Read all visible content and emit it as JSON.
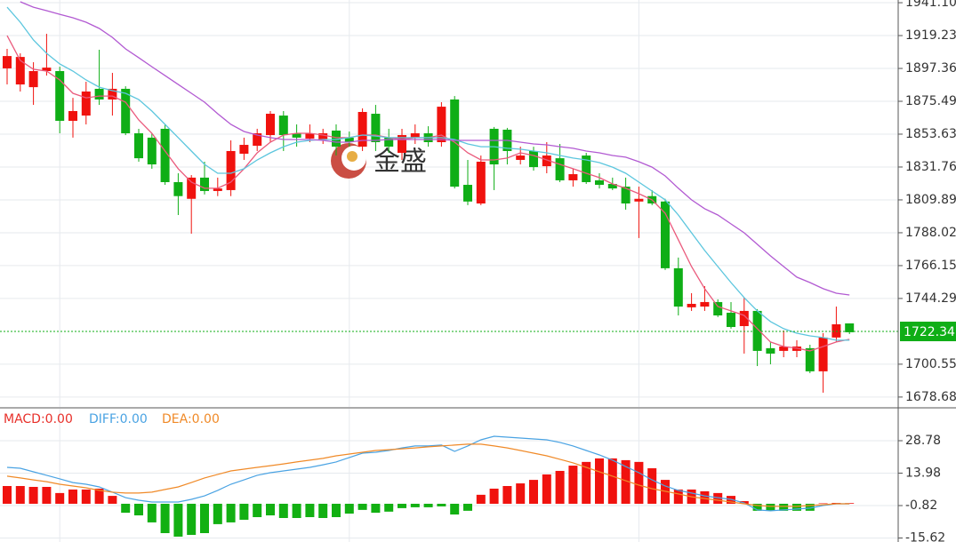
{
  "chart_data": [
    {
      "type": "candlestick",
      "open": [
        1897.4,
        1886.7,
        1884.9,
        1895.6,
        1895.6,
        1862.5,
        1866.0,
        1883.8,
        1876.7,
        1883.8,
        1854.2,
        1851.3,
        1857.2,
        1821.7,
        1810.6,
        1824.7,
        1815.8,
        1816.4,
        1840.6,
        1845.9,
        1853.0,
        1866.0,
        1854.2,
        1850.7,
        1850.1,
        1856.0,
        1851.3,
        1845.3,
        1867.2,
        1851.3,
        1841.2,
        1851.3,
        1854.2,
        1848.3,
        1876.7,
        1819.9,
        1807.5,
        1857.2,
        1856.6,
        1836.5,
        1842.4,
        1832.3,
        1837.6,
        1822.9,
        1839.4,
        1822.9,
        1820.5,
        1818.7,
        1808.8,
        1812.4,
        1808.8,
        1764.4,
        1738.4,
        1738.9,
        1741.9,
        1734.8,
        1725.9,
        1736.0,
        1711.2,
        1709.4,
        1709.4,
        1711.2,
        1695.8,
        1718.3,
        1727.7
      ],
      "high": [
        1910.4,
        1907.4,
        1901.5,
        1920.4,
        1898.5,
        1877.8,
        1888.5,
        1909.8,
        1894.4,
        1885.5,
        1857.2,
        1854.2,
        1860.1,
        1827.6,
        1826.4,
        1835.3,
        1824.7,
        1849.5,
        1851.3,
        1857.2,
        1869.0,
        1869.0,
        1860.1,
        1860.1,
        1857.2,
        1860.1,
        1855.4,
        1870.8,
        1873.1,
        1857.2,
        1857.2,
        1860.1,
        1858.9,
        1874.9,
        1879.0,
        1836.5,
        1839.4,
        1858.4,
        1857.8,
        1845.3,
        1845.3,
        1848.3,
        1847.1,
        1830.6,
        1841.2,
        1827.6,
        1824.7,
        1824.7,
        1818.7,
        1816.4,
        1810.6,
        1771.5,
        1747.8,
        1752.5,
        1743.7,
        1741.9,
        1744.9,
        1737.2,
        1715.3,
        1723.0,
        1716.5,
        1713.5,
        1721.2,
        1738.9,
        1727.7
      ],
      "low": [
        1886.7,
        1882.0,
        1873.1,
        1892.6,
        1854.2,
        1851.3,
        1860.1,
        1873.1,
        1866.0,
        1853.0,
        1835.3,
        1830.6,
        1819.9,
        1799.8,
        1787.4,
        1813.5,
        1812.4,
        1812.4,
        1836.5,
        1842.4,
        1848.3,
        1842.4,
        1845.3,
        1848.3,
        1847.1,
        1839.4,
        1845.3,
        1842.4,
        1842.4,
        1841.2,
        1836.5,
        1847.1,
        1845.3,
        1845.3,
        1817.5,
        1806.4,
        1806.4,
        1816.4,
        1833.5,
        1833.5,
        1829.4,
        1827.6,
        1821.7,
        1818.7,
        1820.5,
        1817.5,
        1816.4,
        1803.4,
        1784.5,
        1806.4,
        1763.2,
        1733.0,
        1736.0,
        1736.0,
        1731.9,
        1724.2,
        1707.6,
        1699.3,
        1700.5,
        1705.2,
        1705.2,
        1694.6,
        1681.6,
        1715.3,
        1720.6
      ],
      "close": [
        1905.6,
        1905.0,
        1895.6,
        1897.9,
        1862.5,
        1869.0,
        1882.0,
        1876.7,
        1883.8,
        1854.2,
        1837.6,
        1833.5,
        1821.7,
        1812.4,
        1824.7,
        1815.8,
        1817.5,
        1842.4,
        1846.5,
        1854.2,
        1867.2,
        1853.0,
        1851.3,
        1854.2,
        1854.2,
        1845.3,
        1848.3,
        1868.4,
        1848.3,
        1845.3,
        1853.0,
        1854.2,
        1848.3,
        1871.9,
        1818.7,
        1808.8,
        1835.3,
        1833.5,
        1842.4,
        1839.4,
        1831.7,
        1839.4,
        1822.9,
        1827.0,
        1821.7,
        1819.9,
        1817.5,
        1807.5,
        1810.6,
        1807.5,
        1764.4,
        1738.9,
        1740.7,
        1741.9,
        1733.0,
        1725.3,
        1736.0,
        1709.4,
        1707.6,
        1712.3,
        1712.3,
        1695.8,
        1718.3,
        1727.1,
        1721.8
      ],
      "up_color": "#f0120e",
      "down_color": "#0fae16",
      "lines": [
        {
          "color": "#ea5a7c",
          "values": [
            1919.2,
            1902.7,
            1896.8,
            1895.6,
            1889.7,
            1880.8,
            1877.8,
            1879.0,
            1879.0,
            1874.9,
            1863.1,
            1854.2,
            1842.4,
            1830.6,
            1821.7,
            1817.6,
            1817.6,
            1821.7,
            1830.6,
            1841.2,
            1848.3,
            1853.0,
            1854.2,
            1854.2,
            1853.0,
            1851.3,
            1851.3,
            1853.0,
            1853.0,
            1851.3,
            1850.1,
            1851.3,
            1851.3,
            1853.0,
            1848.3,
            1841.2,
            1836.5,
            1836.5,
            1837.7,
            1841.2,
            1839.4,
            1836.5,
            1833.5,
            1830.6,
            1827.6,
            1824.7,
            1820.5,
            1817.6,
            1814.0,
            1809.9,
            1801.0,
            1783.3,
            1765.5,
            1750.8,
            1738.9,
            1736.0,
            1733.0,
            1724.2,
            1715.3,
            1712.3,
            1711.2,
            1709.4,
            1712.3,
            1715.3,
            1717.1
          ]
        },
        {
          "color": "#5cc6de",
          "values": [
            1938.1,
            1928.1,
            1916.3,
            1907.4,
            1900.3,
            1895.6,
            1889.7,
            1884.9,
            1882.6,
            1880.8,
            1876.7,
            1869.0,
            1860.1,
            1851.3,
            1842.4,
            1833.5,
            1827.6,
            1827.6,
            1830.6,
            1836.5,
            1841.2,
            1845.3,
            1848.3,
            1849.5,
            1850.1,
            1850.1,
            1851.3,
            1853.0,
            1852.4,
            1851.3,
            1851.3,
            1851.3,
            1851.3,
            1851.3,
            1850.1,
            1847.1,
            1845.3,
            1845.3,
            1844.2,
            1843.6,
            1842.4,
            1841.2,
            1839.4,
            1837.7,
            1836.5,
            1834.7,
            1831.7,
            1827.6,
            1821.7,
            1815.8,
            1809.9,
            1799.8,
            1788.0,
            1776.2,
            1765.5,
            1754.9,
            1744.9,
            1736.0,
            1728.9,
            1724.2,
            1721.2,
            1719.4,
            1718.3,
            1716.5,
            1716.5
          ]
        },
        {
          "color": "#b25ad2",
          "values": [
            null,
            1941.7,
            1938.1,
            1935.8,
            1933.4,
            1931.1,
            1928.1,
            1924.0,
            1918.0,
            1910.4,
            1904.5,
            1898.5,
            1892.6,
            1886.7,
            1880.8,
            1874.9,
            1867.2,
            1860.1,
            1855.4,
            1853.0,
            1851.3,
            1850.1,
            1850.1,
            1850.1,
            1849.5,
            1848.3,
            1848.3,
            1849.5,
            1849.5,
            1850.1,
            1850.1,
            1850.1,
            1850.1,
            1850.1,
            1849.5,
            1849.5,
            1849.5,
            1849.5,
            1849.5,
            1848.3,
            1847.1,
            1846.5,
            1845.3,
            1844.2,
            1842.4,
            1841.2,
            1839.4,
            1838.3,
            1835.3,
            1831.7,
            1825.8,
            1817.6,
            1809.9,
            1804.0,
            1799.8,
            1793.9,
            1788.0,
            1780.3,
            1772.6,
            1765.5,
            1758.5,
            1754.9,
            1750.8,
            1747.8,
            1746.6
          ]
        }
      ],
      "ylim": [
        1672.1,
        1942.9
      ],
      "yticks": [
        {
          "value": 1941.1,
          "label": "1941.10"
        },
        1919.23,
        1897.36,
        1875.49,
        1853.63,
        1831.76,
        1809.89,
        1788.02,
        1766.15,
        1744.29,
        1700.55,
        1678.68
      ],
      "grid": true,
      "last_price": 1722.34,
      "last_price_color": "#0fae16",
      "watermark": "金盛"
    },
    {
      "type": "macd",
      "legend": [
        {
          "text": "MACD:0.00",
          "color": "#e8302a"
        },
        {
          "text": "DIFF:0.00",
          "color": "#4aa3e3"
        },
        {
          "text": "DEA:0.00",
          "color": "#f08a28"
        }
      ],
      "histogram": [
        8.1,
        8.1,
        7.7,
        7.7,
        4.9,
        6.5,
        6.5,
        6.9,
        3.6,
        -4.1,
        -5.3,
        -8.5,
        -13.4,
        -15.0,
        -14.2,
        -13.4,
        -9.3,
        -8.5,
        -7.3,
        -6.1,
        -5.3,
        -6.5,
        -6.5,
        -6.1,
        -6.5,
        -6.1,
        -4.5,
        -2.8,
        -4.1,
        -3.6,
        -2.0,
        -1.6,
        -1.6,
        -1.2,
        -4.9,
        -3.2,
        4.1,
        6.9,
        8.1,
        9.3,
        10.9,
        13.4,
        15.0,
        17.4,
        19.1,
        20.7,
        20.7,
        19.9,
        19.1,
        16.2,
        10.9,
        6.5,
        6.5,
        5.7,
        4.9,
        3.6,
        1.2,
        -3.2,
        -3.2,
        -3.2,
        -3.2,
        -3.2,
        0.2,
        0.4,
        0.3
      ],
      "diff": [
        16.6,
        16.2,
        14.6,
        13.0,
        11.4,
        9.7,
        8.9,
        7.7,
        5.3,
        2.8,
        1.6,
        0.8,
        0.8,
        0.8,
        2.0,
        3.6,
        6.1,
        8.9,
        10.9,
        13.0,
        14.2,
        15.0,
        15.8,
        16.6,
        17.8,
        19.1,
        21.1,
        23.1,
        23.5,
        24.3,
        25.5,
        26.4,
        26.4,
        26.8,
        23.9,
        26.4,
        29.2,
        30.8,
        30.4,
        30.0,
        29.6,
        29.2,
        28.0,
        26.4,
        24.3,
        22.3,
        19.9,
        17.0,
        14.2,
        10.9,
        8.1,
        6.1,
        4.9,
        3.6,
        2.8,
        2.0,
        0.4,
        -2.8,
        -3.2,
        -2.8,
        -2.4,
        -2.0,
        -0.8,
        0,
        0
      ],
      "dea": [
        12.6,
        11.8,
        10.9,
        10.1,
        8.9,
        8.1,
        7.3,
        6.1,
        5.3,
        4.9,
        4.9,
        5.3,
        6.5,
        7.7,
        9.7,
        11.8,
        13.4,
        15.0,
        15.8,
        16.6,
        17.4,
        18.2,
        19.1,
        19.9,
        20.7,
        21.9,
        22.7,
        23.5,
        24.3,
        24.7,
        25.1,
        25.5,
        26.0,
        26.4,
        26.8,
        27.2,
        27.2,
        26.4,
        25.5,
        24.3,
        23.1,
        21.9,
        20.3,
        18.7,
        16.6,
        14.6,
        12.6,
        10.5,
        8.5,
        6.9,
        5.7,
        4.5,
        3.2,
        2.4,
        1.6,
        0.8,
        0,
        -0.8,
        -1.2,
        -1.2,
        -1.2,
        -0.8,
        -0.4,
        0,
        0
      ],
      "up_color": "#f0120e",
      "down_color": "#12b012",
      "ylim": [
        -17.45,
        43.38
      ],
      "yticks": [
        28.78,
        13.98,
        -0.82,
        -15.62
      ],
      "grid": true
    }
  ]
}
